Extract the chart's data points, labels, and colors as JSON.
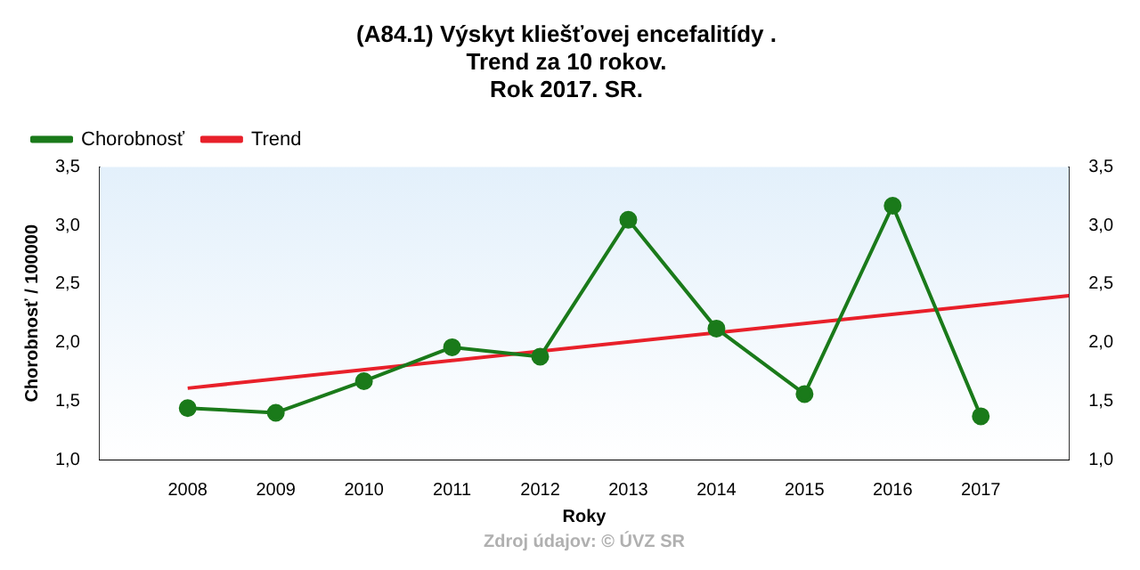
{
  "chart_data": {
    "type": "line",
    "title": [
      "(A84.1) Výskyt kliešťovej encefalitídy .",
      "Trend za 10 rokov.",
      "Rok 2017. SR."
    ],
    "xlabel": "Roky",
    "ylabel": "Chorobnosť / 100000",
    "x": [
      2008,
      2009,
      2010,
      2011,
      2012,
      2013,
      2014,
      2015,
      2016,
      2017
    ],
    "series": [
      {
        "name": "Chorobnosť",
        "color": "#1a7a1a",
        "values": [
          1.44,
          1.4,
          1.67,
          1.96,
          1.88,
          3.05,
          2.12,
          1.56,
          3.17,
          1.37
        ]
      },
      {
        "name": "Trend",
        "color": "#e8202a",
        "marker": "none",
        "x": [
          2008,
          2018
        ],
        "values": [
          1.61,
          2.4
        ]
      }
    ],
    "xlim": [
      2007,
      2018
    ],
    "xticks": [
      2008,
      2009,
      2010,
      2011,
      2012,
      2013,
      2014,
      2015,
      2016,
      2017
    ],
    "ylim": [
      1.0,
      3.5
    ],
    "yticks": [
      {
        "value": 1.0,
        "label": "1,0"
      },
      {
        "value": 1.5,
        "label": "1,5"
      },
      {
        "value": 2.0,
        "label": "2,0"
      },
      {
        "value": 2.5,
        "label": "2,5"
      },
      {
        "value": 3.0,
        "label": "3,0"
      },
      {
        "value": 3.5,
        "label": "3,5"
      }
    ],
    "y2lim": [
      1.0,
      3.5
    ],
    "y2ticks": [
      {
        "value": 1.0,
        "label": "1,0"
      },
      {
        "value": 1.5,
        "label": "1,5"
      },
      {
        "value": 2.0,
        "label": "2,0"
      },
      {
        "value": 2.5,
        "label": "2,5"
      },
      {
        "value": 3.0,
        "label": "3,0"
      },
      {
        "value": 3.5,
        "label": "3,5"
      }
    ],
    "grid": false,
    "legend": "top left",
    "marker": "circle",
    "line_style": "solid",
    "annotations": [
      "Zdroj údajov: © ÚVZ SR"
    ]
  }
}
